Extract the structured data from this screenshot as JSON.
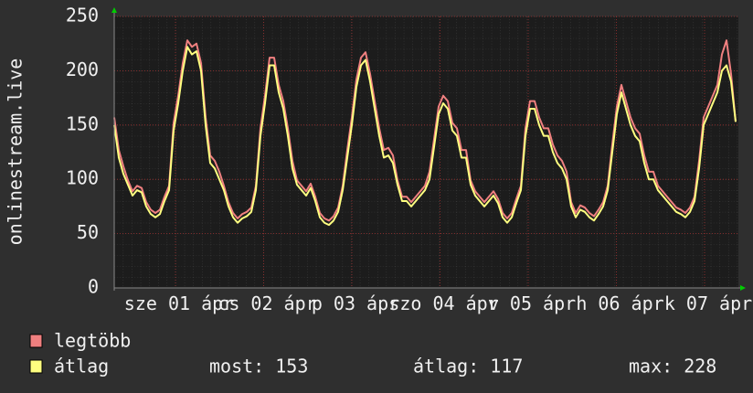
{
  "chart_data": {
    "type": "line",
    "ylabel": "onlinestream.live",
    "x_labels": [
      "sze 01 ápr",
      "cs 02 ápr",
      "p 03 ápr",
      "szo 04 ápr",
      "v 05 ápr",
      "h 06 ápr",
      "k 07 ápr"
    ],
    "ylim": [
      0,
      250
    ],
    "yticks": [
      0,
      50,
      100,
      150,
      200,
      250
    ],
    "grid": true,
    "series": [
      {
        "name": "legtöbb",
        "color": "#f08080",
        "values": [
          157,
          127,
          112,
          99,
          89,
          94,
          92,
          79,
          72,
          69,
          72,
          84,
          94,
          152,
          177,
          207,
          228,
          222,
          225,
          207,
          157,
          122,
          117,
          107,
          94,
          79,
          69,
          64,
          68,
          70,
          74,
          94,
          147,
          177,
          212,
          212,
          187,
          172,
          147,
          117,
          99,
          94,
          89,
          96,
          84,
          69,
          64,
          62,
          66,
          74,
          94,
          127,
          157,
          192,
          212,
          217,
          197,
          172,
          147,
          127,
          129,
          122,
          99,
          84,
          84,
          79,
          84,
          89,
          94,
          107,
          137,
          167,
          177,
          172,
          152,
          147,
          127,
          127,
          99,
          89,
          84,
          79,
          84,
          89,
          82,
          69,
          64,
          69,
          82,
          94,
          147,
          172,
          172,
          157,
          147,
          147,
          132,
          122,
          117,
          107,
          79,
          69,
          76,
          74,
          69,
          66,
          72,
          79,
          94,
          132,
          167,
          187,
          172,
          157,
          147,
          142,
          122,
          107,
          107,
          94,
          89,
          84,
          79,
          74,
          72,
          69,
          74,
          84,
          117,
          157,
          167,
          177,
          187,
          215,
          228,
          197,
          153
        ]
      },
      {
        "name": "átlag",
        "color": "#ffff80",
        "values": [
          150,
          120,
          105,
          95,
          85,
          90,
          88,
          75,
          68,
          65,
          68,
          80,
          90,
          145,
          170,
          200,
          222,
          215,
          218,
          200,
          150,
          115,
          110,
          100,
          90,
          75,
          65,
          60,
          64,
          66,
          70,
          90,
          140,
          170,
          205,
          205,
          180,
          165,
          140,
          110,
          95,
          90,
          85,
          92,
          80,
          65,
          60,
          58,
          62,
          70,
          90,
          120,
          150,
          185,
          205,
          210,
          190,
          165,
          140,
          120,
          122,
          115,
          95,
          80,
          80,
          75,
          80,
          85,
          90,
          100,
          130,
          160,
          170,
          165,
          145,
          140,
          120,
          120,
          95,
          85,
          80,
          75,
          80,
          85,
          78,
          65,
          60,
          65,
          78,
          90,
          140,
          165,
          165,
          150,
          140,
          140,
          125,
          115,
          110,
          100,
          75,
          65,
          72,
          70,
          65,
          62,
          68,
          75,
          90,
          125,
          160,
          180,
          165,
          150,
          140,
          135,
          115,
          100,
          100,
          90,
          85,
          80,
          75,
          70,
          68,
          65,
          70,
          80,
          110,
          150,
          160,
          170,
          180,
          200,
          205,
          190,
          153
        ],
        "stats": [
          {
            "label": "most:",
            "value": 153
          },
          {
            "label": "átlag:",
            "value": 117
          },
          {
            "label": "max:",
            "value": 228
          }
        ]
      }
    ]
  }
}
